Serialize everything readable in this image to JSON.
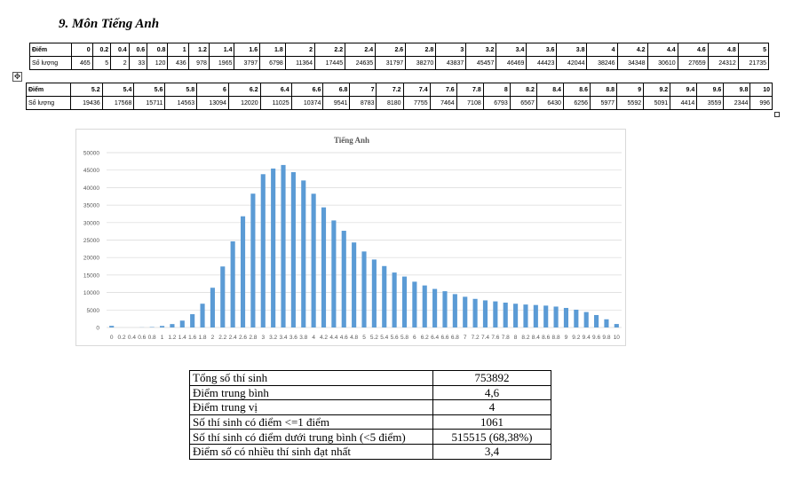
{
  "title": "9.  Môn Tiếng Anh",
  "table1": {
    "row_label_score": "Điểm",
    "row_label_count": "Số lượng",
    "scores": [
      "0",
      "0.2",
      "0.4",
      "0.6",
      "0.8",
      "1",
      "1.2",
      "1.4",
      "1.6",
      "1.8",
      "2",
      "2.2",
      "2.4",
      "2.6",
      "2.8",
      "3",
      "3.2",
      "3.4",
      "3.6",
      "3.8",
      "4",
      "4.2",
      "4.4",
      "4.6",
      "4.8",
      "5"
    ],
    "counts": [
      "465",
      "5",
      "2",
      "33",
      "120",
      "436",
      "978",
      "1965",
      "3797",
      "6798",
      "11364",
      "17445",
      "24635",
      "31797",
      "38270",
      "43837",
      "45457",
      "46469",
      "44423",
      "42044",
      "38246",
      "34348",
      "30610",
      "27659",
      "24312",
      "21735"
    ]
  },
  "table2": {
    "row_label_score": "Điểm",
    "row_label_count": "Số lượng",
    "scores": [
      "5.2",
      "5.4",
      "5.6",
      "5.8",
      "6",
      "6.2",
      "6.4",
      "6.6",
      "6.8",
      "7",
      "7.2",
      "7.4",
      "7.6",
      "7.8",
      "8",
      "8.2",
      "8.4",
      "8.6",
      "8.8",
      "9",
      "9.2",
      "9.4",
      "9.6",
      "9.8",
      "10"
    ],
    "counts": [
      "19436",
      "17568",
      "15711",
      "14563",
      "13094",
      "12020",
      "11025",
      "10374",
      "9541",
      "8783",
      "8180",
      "7755",
      "7464",
      "7108",
      "6793",
      "6567",
      "6430",
      "6256",
      "5977",
      "5592",
      "5091",
      "4414",
      "3559",
      "2344",
      "996"
    ]
  },
  "chart_data": {
    "type": "bar",
    "title": "Tiếng Anh",
    "xlabel": "",
    "ylabel": "",
    "ylim": [
      0,
      50000
    ],
    "yticks": [
      0,
      5000,
      10000,
      15000,
      20000,
      25000,
      30000,
      35000,
      40000,
      45000,
      50000
    ],
    "grid": true,
    "bar_color": "#5b9bd5",
    "categories": [
      "0",
      "0.2",
      "0.4",
      "0.6",
      "0.8",
      "1",
      "1.2",
      "1.4",
      "1.6",
      "1.8",
      "2",
      "2.2",
      "2.4",
      "2.6",
      "2.8",
      "3",
      "3.2",
      "3.4",
      "3.6",
      "3.8",
      "4",
      "4.2",
      "4.4",
      "4.6",
      "4.8",
      "5",
      "5.2",
      "5.4",
      "5.6",
      "5.8",
      "6",
      "6.2",
      "6.4",
      "6.6",
      "6.8",
      "7",
      "7.2",
      "7.4",
      "7.6",
      "7.8",
      "8",
      "8.2",
      "8.4",
      "8.6",
      "8.8",
      "9",
      "9.2",
      "9.4",
      "9.6",
      "9.8",
      "10"
    ],
    "values": [
      465,
      5,
      2,
      33,
      120,
      436,
      978,
      1965,
      3797,
      6798,
      11364,
      17445,
      24635,
      31797,
      38270,
      43837,
      45457,
      46469,
      44423,
      42044,
      38246,
      34348,
      30610,
      27659,
      24312,
      21735,
      19436,
      17568,
      15711,
      14563,
      13094,
      12020,
      11025,
      10374,
      9541,
      8783,
      8180,
      7755,
      7464,
      7108,
      6793,
      6567,
      6430,
      6256,
      5977,
      5592,
      5091,
      4414,
      3559,
      2344,
      996
    ]
  },
  "stats": [
    {
      "label": "Tổng số thí sinh",
      "value": "753892"
    },
    {
      "label": "Điểm trung bình",
      "value": "4,6"
    },
    {
      "label": "Điểm trung vị",
      "value": "4"
    },
    {
      "label": "Số thí sinh có điểm <=1 điểm",
      "value": "1061"
    },
    {
      "label": "Số thí sinh có điểm dưới trung bình (<5 điểm)",
      "value": "515515 (68,38%)"
    },
    {
      "label": "Điểm số có nhiều thí sinh đạt nhất",
      "value": "3,4"
    }
  ]
}
